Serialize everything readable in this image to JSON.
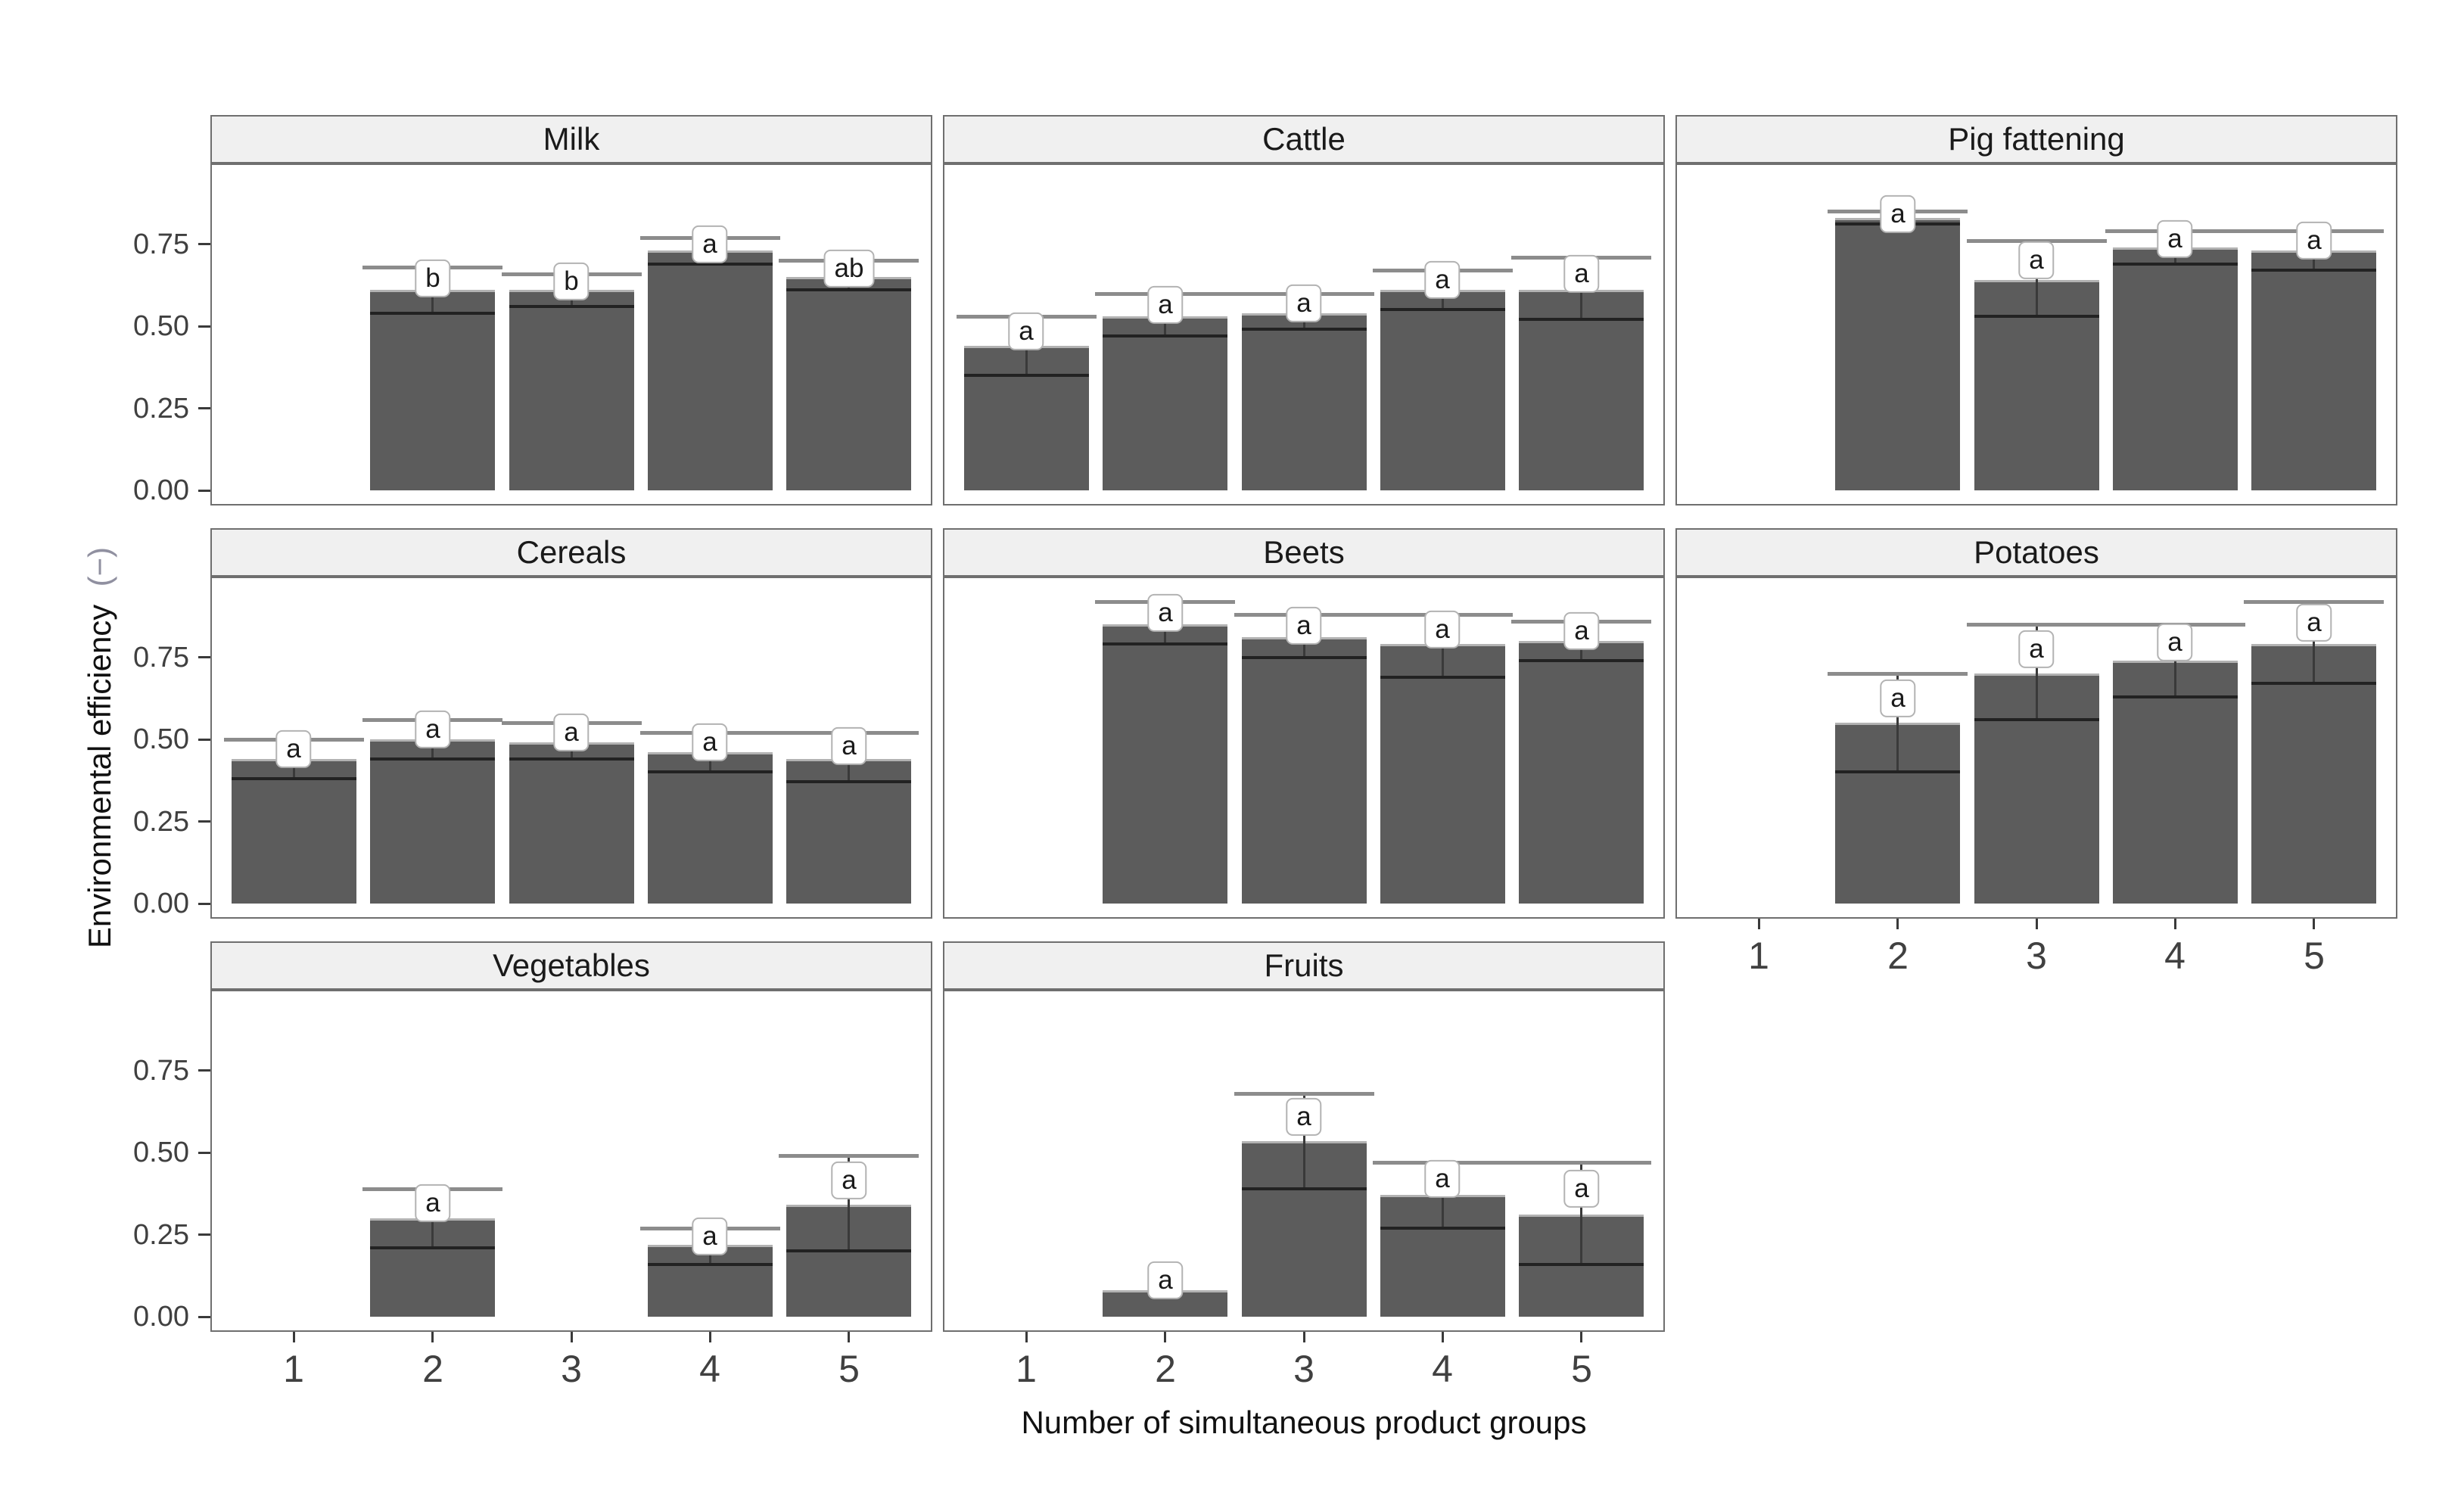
{
  "axes": {
    "x_title": "Number of simultaneous product groups",
    "y_title_main": "Environmental efficiency",
    "y_title_unit": "(−)",
    "y_tick_labels": [
      "0.00",
      "0.25",
      "0.50",
      "0.75"
    ],
    "x_tick_labels": [
      "1",
      "2",
      "3",
      "4",
      "5"
    ]
  },
  "chart_data": {
    "type": "bar",
    "title": "",
    "xlabel": "Number of simultaneous product groups",
    "ylabel": "Environmental efficiency (−)",
    "x_categories": [
      1,
      2,
      3,
      4,
      5
    ],
    "ylim": [
      0,
      1.0
    ],
    "y_ticks": [
      0,
      0.25,
      0.5,
      0.75
    ],
    "grid": false,
    "legend": false,
    "error_bars": true,
    "facets": [
      {
        "name": "Milk",
        "bars": [
          {
            "x": 2,
            "value": 0.61,
            "lower": 0.54,
            "upper": 0.68,
            "letter": "b"
          },
          {
            "x": 3,
            "value": 0.61,
            "lower": 0.56,
            "upper": 0.66,
            "letter": "b"
          },
          {
            "x": 4,
            "value": 0.73,
            "lower": 0.69,
            "upper": 0.77,
            "letter": "a"
          },
          {
            "x": 5,
            "value": 0.65,
            "lower": 0.61,
            "upper": 0.7,
            "letter": "ab"
          }
        ]
      },
      {
        "name": "Cattle",
        "bars": [
          {
            "x": 1,
            "value": 0.44,
            "lower": 0.35,
            "upper": 0.53,
            "letter": "a"
          },
          {
            "x": 2,
            "value": 0.53,
            "lower": 0.47,
            "upper": 0.6,
            "letter": "a"
          },
          {
            "x": 3,
            "value": 0.54,
            "lower": 0.49,
            "upper": 0.6,
            "letter": "a"
          },
          {
            "x": 4,
            "value": 0.61,
            "lower": 0.55,
            "upper": 0.67,
            "letter": "a"
          },
          {
            "x": 5,
            "value": 0.61,
            "lower": 0.52,
            "upper": 0.71,
            "letter": "a"
          }
        ]
      },
      {
        "name": "Pig fattening",
        "bars": [
          {
            "x": 2,
            "value": 0.83,
            "lower": 0.81,
            "upper": 0.85,
            "letter": "a"
          },
          {
            "x": 3,
            "value": 0.64,
            "lower": 0.53,
            "upper": 0.76,
            "letter": "a"
          },
          {
            "x": 4,
            "value": 0.74,
            "lower": 0.69,
            "upper": 0.79,
            "letter": "a"
          },
          {
            "x": 5,
            "value": 0.73,
            "lower": 0.67,
            "upper": 0.79,
            "letter": "a"
          }
        ]
      },
      {
        "name": "Cereals",
        "bars": [
          {
            "x": 1,
            "value": 0.44,
            "lower": 0.38,
            "upper": 0.5,
            "letter": "a"
          },
          {
            "x": 2,
            "value": 0.5,
            "lower": 0.44,
            "upper": 0.56,
            "letter": "a"
          },
          {
            "x": 3,
            "value": 0.49,
            "lower": 0.44,
            "upper": 0.55,
            "letter": "a"
          },
          {
            "x": 4,
            "value": 0.46,
            "lower": 0.4,
            "upper": 0.52,
            "letter": "a"
          },
          {
            "x": 5,
            "value": 0.44,
            "lower": 0.37,
            "upper": 0.52,
            "letter": "a"
          }
        ]
      },
      {
        "name": "Beets",
        "bars": [
          {
            "x": 2,
            "value": 0.85,
            "lower": 0.79,
            "upper": 0.92,
            "letter": "a"
          },
          {
            "x": 3,
            "value": 0.81,
            "lower": 0.75,
            "upper": 0.88,
            "letter": "a"
          },
          {
            "x": 4,
            "value": 0.79,
            "lower": 0.69,
            "upper": 0.88,
            "letter": "a"
          },
          {
            "x": 5,
            "value": 0.8,
            "lower": 0.74,
            "upper": 0.86,
            "letter": "a"
          }
        ]
      },
      {
        "name": "Potatoes",
        "bars": [
          {
            "x": 2,
            "value": 0.55,
            "lower": 0.4,
            "upper": 0.7,
            "letter": "a"
          },
          {
            "x": 3,
            "value": 0.7,
            "lower": 0.56,
            "upper": 0.85,
            "letter": "a"
          },
          {
            "x": 4,
            "value": 0.74,
            "lower": 0.63,
            "upper": 0.85,
            "letter": "a"
          },
          {
            "x": 5,
            "value": 0.79,
            "lower": 0.67,
            "upper": 0.92,
            "letter": "a"
          }
        ]
      },
      {
        "name": "Vegetables",
        "bars": [
          {
            "x": 2,
            "value": 0.3,
            "lower": 0.21,
            "upper": 0.39,
            "letter": "a"
          },
          {
            "x": 4,
            "value": 0.22,
            "lower": 0.16,
            "upper": 0.27,
            "letter": "a"
          },
          {
            "x": 5,
            "value": 0.34,
            "lower": 0.2,
            "upper": 0.49,
            "letter": "a"
          }
        ]
      },
      {
        "name": "Fruits",
        "bars": [
          {
            "x": 2,
            "value": 0.08,
            "lower": null,
            "upper": null,
            "letter": "a"
          },
          {
            "x": 3,
            "value": 0.535,
            "lower": 0.39,
            "upper": 0.68,
            "letter": "a"
          },
          {
            "x": 4,
            "value": 0.37,
            "lower": 0.27,
            "upper": 0.47,
            "letter": "a"
          },
          {
            "x": 5,
            "value": 0.31,
            "lower": 0.16,
            "upper": 0.47,
            "letter": "a"
          }
        ]
      }
    ]
  },
  "style": {
    "bar_fill": "#5c5c5c",
    "bar_top_edge": "#b2b2b2",
    "upper_cap_color": "#8c8c8c",
    "lower_cap_color": "#222222",
    "whisker_color": "#3a3a3a",
    "panel_border": "#6f6f6f",
    "strip_fill": "#f0f0f0",
    "tick_color": "#3a3a3a",
    "unit_color": "#9090a0"
  }
}
